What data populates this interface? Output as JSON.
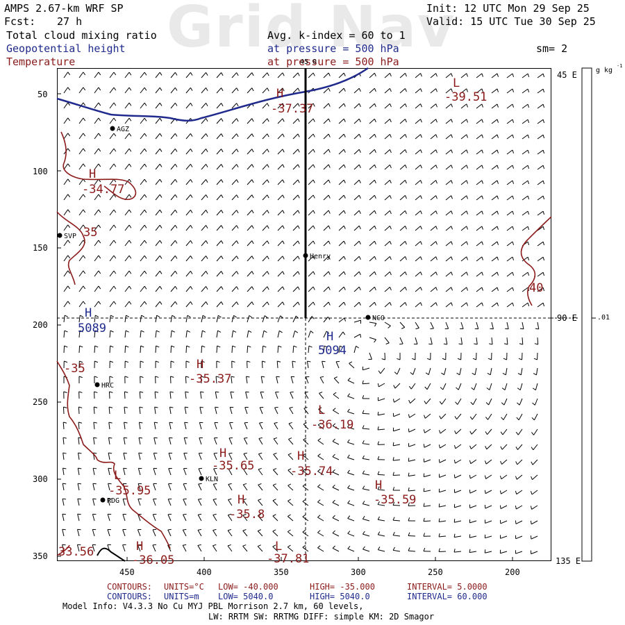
{
  "watermark": "Grid Nav",
  "header": {
    "model": "AMPS 2.67-km WRF SP",
    "fcst_label": "Fcst:",
    "fcst_value": "27 h",
    "init": "Init: 12 UTC Mon 29 Sep 25",
    "valid": "Valid: 15 UTC Tue 30 Sep 25",
    "field1": "Total cloud mixing ratio",
    "field2": "Geopotential height",
    "field3": "Temperature",
    "avg_k": "Avg. k-index =  60 to   1",
    "pressure1": "at pressure =  500 hPa",
    "pressure2": "at pressure =  500 hPa",
    "sm": "sm= 2"
  },
  "axes": {
    "x_ticks": [
      "450",
      "400",
      "350",
      "300",
      "250",
      "200"
    ],
    "y_ticks": [
      "50",
      "100",
      "150",
      "200",
      "250",
      "300",
      "350"
    ],
    "right_labels": [
      "45 E",
      "90 E",
      "135 E"
    ]
  },
  "colorbar": {
    "unit": "g kg",
    "unit_exp": "-1",
    "value": ".01"
  },
  "stations": [
    {
      "name": "AGZ"
    },
    {
      "name": "SVP"
    },
    {
      "name": "Henry"
    },
    {
      "name": "NCO"
    },
    {
      "name": "HRC"
    },
    {
      "name": "KLN"
    },
    {
      "name": "RDG"
    }
  ],
  "map_labels": {
    "top_lon": "45 0",
    "h1": "H",
    "h1v": "-37.37",
    "l1": "L",
    "l1v": "-39.51",
    "h2": "H",
    "h2v": "-34.77",
    "c35a": "35",
    "c40": "40",
    "hz1": "H",
    "hz1v": "5089",
    "hz2": "H",
    "hz2v": "5094",
    "c35b": "-35",
    "h3": "H",
    "h3v": "-35.37",
    "l2": "L",
    "l2v": "-36.19",
    "h4": "H",
    "h4v": "-35.65",
    "h5": "H",
    "h5v": "-35.74",
    "l3": "L",
    "l3v": "-35.95",
    "h6": "H",
    "h6v": "-35.59",
    "h7": "H",
    "h7v": "-35.8",
    "bl1": "33.56",
    "h8": "H",
    "h8v": "-36.05",
    "l4": "L",
    "l4v": "-37.81"
  },
  "footer": {
    "c1_label": "CONTOURS:",
    "c1_units": "UNITS=°C",
    "c1_low": "LOW= -40.000",
    "c1_high": "HIGH= -35.000",
    "c1_interval": "INTERVAL=   5.0000",
    "c2_label": "CONTOURS:",
    "c2_units": "UNITS=m",
    "c2_low": "LOW=  5040.0",
    "c2_high": "HIGH=  5040.0",
    "c2_interval": "INTERVAL=   60.000",
    "model_info": "Model Info: V4.3.3    No Cu    MYJ PBL  Morrison           2.7 km,  60 levels,",
    "model_info2": "LW: RRTM SW: RRTMG   DIFF: simple KM: 2D Smagor"
  },
  "colors": {
    "temperature": "#8b1a1a",
    "height": "#1f2a8c",
    "barb": "#000000"
  }
}
